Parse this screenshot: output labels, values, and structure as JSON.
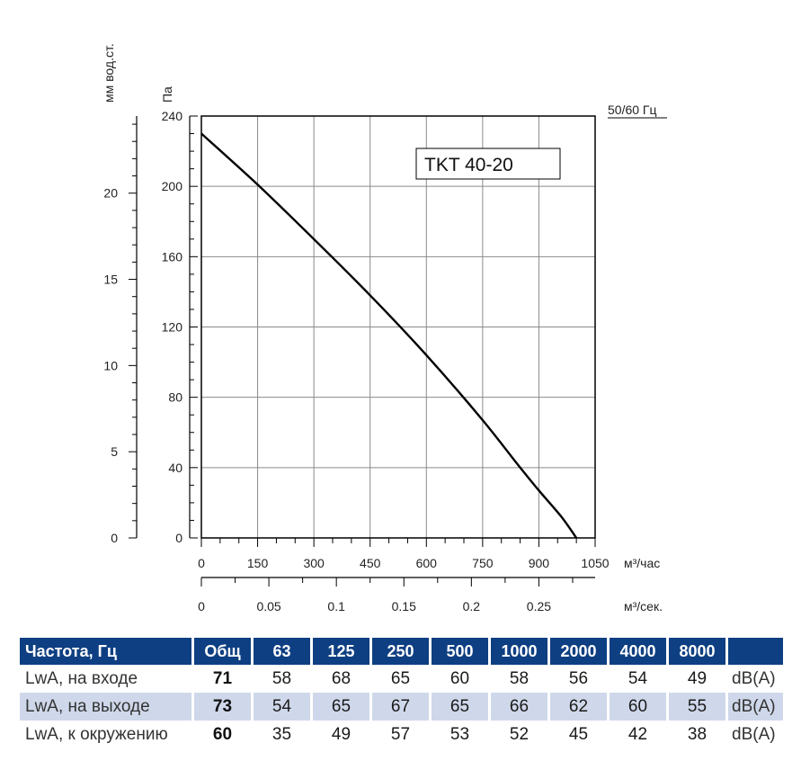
{
  "chart_data": {
    "type": "line",
    "model_label": "TKT 40-20",
    "frequency_label": "50/60 Гц",
    "x_axis": {
      "unit": "м³/час",
      "range": [
        0,
        1050
      ],
      "ticks": [
        "0",
        "150",
        "300",
        "450",
        "600",
        "750",
        "900",
        "1050"
      ]
    },
    "x_axis_secondary": {
      "unit": "м³/сек.",
      "ticks": [
        "0",
        "0.05",
        "0.1",
        "0.15",
        "0.2",
        "0.25"
      ]
    },
    "y_axis": {
      "unit": "Па",
      "range": [
        0,
        240
      ],
      "ticks": [
        "0",
        "40",
        "80",
        "120",
        "160",
        "200",
        "240"
      ]
    },
    "y_axis_secondary": {
      "unit": "мм вод.ст.",
      "ticks": [
        "0",
        "5",
        "10",
        "15",
        "20"
      ]
    },
    "grid": true,
    "series": [
      {
        "x": [
          0,
          150,
          300,
          450,
          600,
          750,
          850,
          900,
          960,
          1000
        ],
        "y": [
          230,
          201,
          170,
          138,
          104,
          67,
          40,
          27,
          12,
          0
        ]
      }
    ]
  },
  "table": {
    "header": [
      "Частота, Гц",
      "Общ",
      "63",
      "125",
      "250",
      "500",
      "1000",
      "2000",
      "4000",
      "8000",
      ""
    ],
    "rows": [
      {
        "label": "LwA, на входе",
        "total": "71",
        "values": [
          "58",
          "68",
          "65",
          "60",
          "58",
          "56",
          "54",
          "49"
        ],
        "unit": "dB(A)"
      },
      {
        "label": "LwA, на выходе",
        "total": "73",
        "values": [
          "54",
          "65",
          "67",
          "65",
          "66",
          "62",
          "60",
          "55"
        ],
        "unit": "dB(A)"
      },
      {
        "label": "LwA, к окружению",
        "total": "60",
        "values": [
          "35",
          "49",
          "57",
          "53",
          "52",
          "45",
          "42",
          "38"
        ],
        "unit": "dB(A)"
      }
    ]
  },
  "colors": {
    "header_bg": "#0e3f82",
    "row_shade": "#cfd8ea",
    "curve": "#000000"
  }
}
